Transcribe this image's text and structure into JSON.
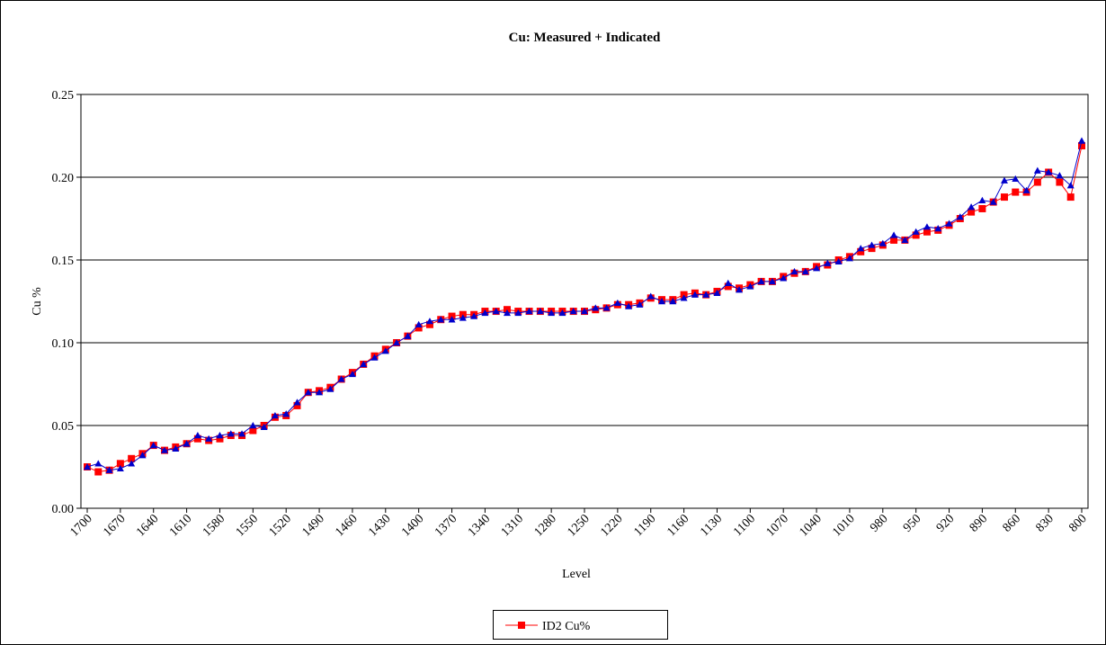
{
  "chart_data": {
    "type": "line",
    "title": "Cu: Measured + Indicated",
    "x_label": "Level",
    "y_label": "Cu %",
    "categories": [
      "1700",
      null,
      null,
      "1670",
      null,
      null,
      "1640",
      null,
      null,
      "1610",
      null,
      null,
      "1580",
      null,
      null,
      "1550",
      null,
      null,
      "1520",
      null,
      null,
      "1490",
      null,
      null,
      "1460",
      null,
      null,
      "1430",
      null,
      null,
      "1400",
      null,
      null,
      "1370",
      null,
      null,
      "1340",
      null,
      null,
      "1310",
      null,
      null,
      "1280",
      null,
      null,
      "1250",
      null,
      null,
      "1220",
      null,
      null,
      "1190",
      null,
      null,
      "1160",
      null,
      null,
      "1130",
      null,
      null,
      "1100",
      null,
      null,
      "1070",
      null,
      null,
      "1040",
      null,
      null,
      "1010",
      null,
      null,
      "980",
      null,
      null,
      "950",
      null,
      null,
      "920",
      null,
      null,
      "890",
      null,
      null,
      "860",
      null,
      null,
      "830",
      null,
      null,
      "800"
    ],
    "series": [
      {
        "name": "ID2 Cu%",
        "color": "#ff0000",
        "marker": "square",
        "values": [
          0.025,
          0.022,
          0.023,
          0.027,
          0.03,
          0.033,
          0.038,
          0.035,
          0.037,
          0.039,
          0.042,
          0.041,
          0.042,
          0.044,
          0.044,
          0.047,
          0.05,
          0.055,
          0.056,
          0.062,
          0.07,
          0.071,
          0.073,
          0.078,
          0.082,
          0.087,
          0.092,
          0.096,
          0.1,
          0.104,
          0.109,
          0.111,
          0.114,
          0.116,
          0.117,
          0.117,
          0.119,
          0.119,
          0.12,
          0.119,
          0.119,
          0.119,
          0.119,
          0.119,
          0.119,
          0.119,
          0.12,
          0.121,
          0.123,
          0.123,
          0.124,
          0.127,
          0.126,
          0.126,
          0.129,
          0.13,
          0.129,
          0.131,
          0.134,
          0.133,
          0.135,
          0.137,
          0.137,
          0.14,
          0.142,
          0.143,
          0.146,
          0.147,
          0.15,
          0.152,
          0.155,
          0.157,
          0.159,
          0.162,
          0.162,
          0.165,
          0.167,
          0.168,
          0.171,
          0.175,
          0.179,
          0.181,
          0.185,
          0.188,
          0.191,
          0.191,
          0.197,
          0.203,
          0.197,
          0.188,
          0.219
        ]
      },
      {
        "color": "#0000cc",
        "marker": "triangle",
        "values": [
          0.025,
          0.027,
          0.023,
          0.024,
          0.027,
          0.032,
          0.038,
          0.035,
          0.036,
          0.039,
          0.044,
          0.042,
          0.044,
          0.045,
          0.045,
          0.05,
          0.049,
          0.056,
          0.057,
          0.064,
          0.07,
          0.07,
          0.072,
          0.078,
          0.081,
          0.087,
          0.091,
          0.095,
          0.1,
          0.104,
          0.111,
          0.113,
          0.114,
          0.114,
          0.115,
          0.116,
          0.118,
          0.119,
          0.118,
          0.118,
          0.119,
          0.119,
          0.118,
          0.118,
          0.119,
          0.119,
          0.121,
          0.121,
          0.124,
          0.122,
          0.123,
          0.128,
          0.125,
          0.125,
          0.127,
          0.129,
          0.129,
          0.13,
          0.136,
          0.132,
          0.134,
          0.137,
          0.137,
          0.139,
          0.143,
          0.143,
          0.145,
          0.148,
          0.149,
          0.151,
          0.157,
          0.159,
          0.16,
          0.165,
          0.162,
          0.167,
          0.17,
          0.169,
          0.172,
          0.176,
          0.182,
          0.186,
          0.185,
          0.198,
          0.199,
          0.192,
          0.204,
          0.203,
          0.201,
          0.195,
          0.222
        ]
      }
    ],
    "ylim": [
      0,
      0.25
    ],
    "yticks": [
      {
        "value": 0,
        "label": "0.00"
      },
      {
        "value": 0.05,
        "label": "0.05"
      },
      {
        "value": 0.1,
        "label": "0.10"
      },
      {
        "value": 0.15,
        "label": "0.15"
      },
      {
        "value": 0.2,
        "label": "0.20"
      },
      {
        "value": 0.25,
        "label": "0.25"
      }
    ],
    "grid": true,
    "legend": "bottom"
  }
}
